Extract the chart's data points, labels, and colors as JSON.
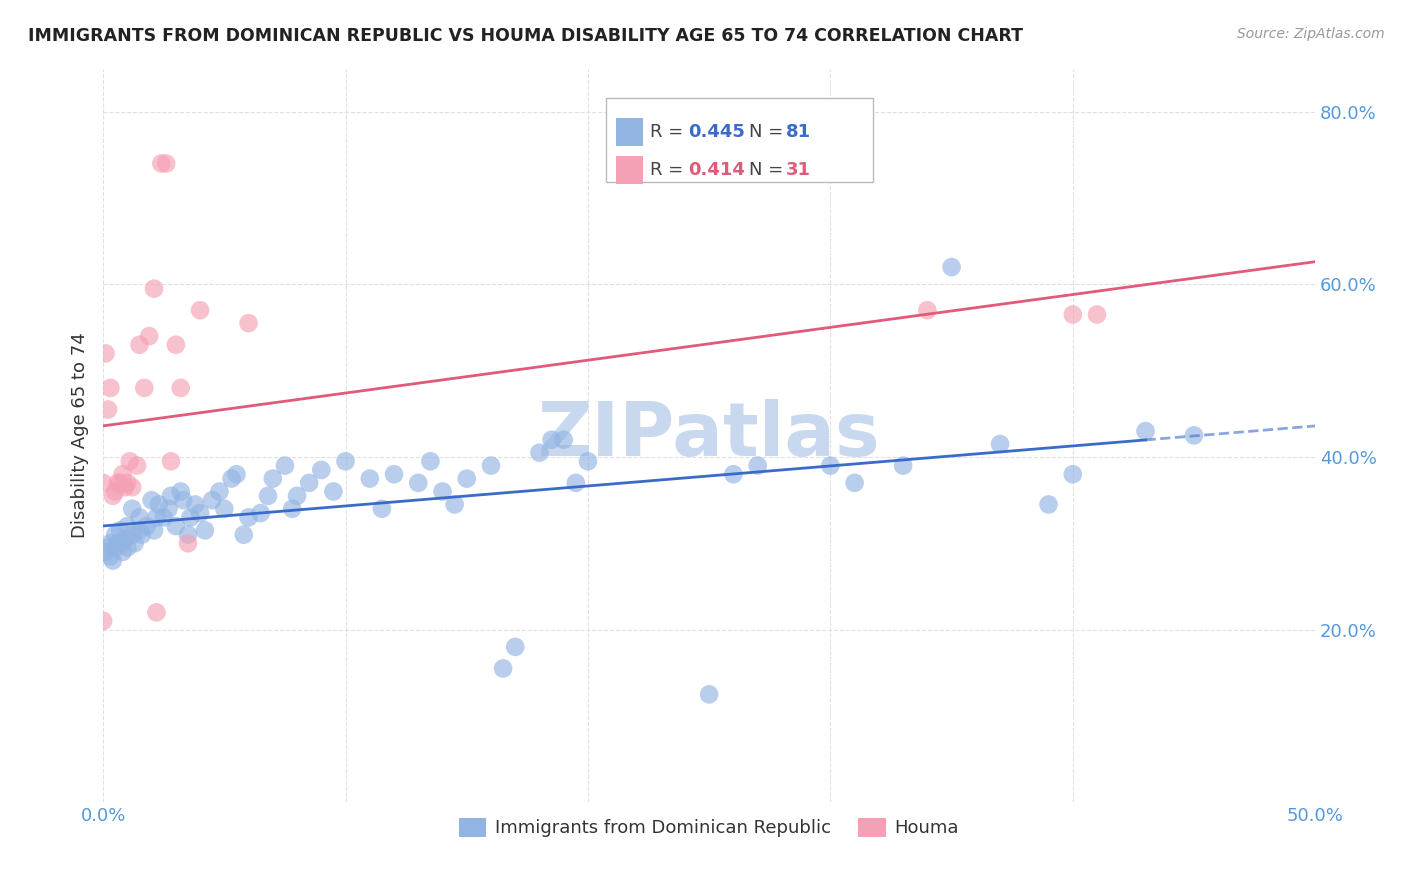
{
  "title": "IMMIGRANTS FROM DOMINICAN REPUBLIC VS HOUMA DISABILITY AGE 65 TO 74 CORRELATION CHART",
  "source": "Source: ZipAtlas.com",
  "ylabel_label": "Disability Age 65 to 74",
  "xlim": [
    0.0,
    0.5
  ],
  "ylim": [
    0.0,
    0.85
  ],
  "xtick_vals": [
    0.0,
    0.1,
    0.2,
    0.3,
    0.4,
    0.5
  ],
  "xtick_labels": [
    "0.0%",
    "",
    "",
    "",
    "",
    "50.0%"
  ],
  "ytick_vals": [
    0.0,
    0.2,
    0.4,
    0.6,
    0.8
  ],
  "ytick_labels": [
    "",
    "20.0%",
    "40.0%",
    "60.0%",
    "80.0%"
  ],
  "blue_R": "0.445",
  "blue_N": "81",
  "pink_R": "0.414",
  "pink_N": "31",
  "blue_color": "#92b4e3",
  "pink_color": "#f4a0b5",
  "blue_line_color": "#3a6bc9",
  "pink_line_color": "#e05a7a",
  "tick_color": "#5599dd",
  "blue_scatter": [
    [
      0.001,
      0.29
    ],
    [
      0.002,
      0.295
    ],
    [
      0.003,
      0.285
    ],
    [
      0.003,
      0.3
    ],
    [
      0.004,
      0.28
    ],
    [
      0.005,
      0.295
    ],
    [
      0.005,
      0.31
    ],
    [
      0.006,
      0.3
    ],
    [
      0.007,
      0.315
    ],
    [
      0.008,
      0.29
    ],
    [
      0.008,
      0.3
    ],
    [
      0.009,
      0.305
    ],
    [
      0.01,
      0.295
    ],
    [
      0.01,
      0.32
    ],
    [
      0.012,
      0.34
    ],
    [
      0.012,
      0.31
    ],
    [
      0.013,
      0.3
    ],
    [
      0.015,
      0.315
    ],
    [
      0.015,
      0.33
    ],
    [
      0.016,
      0.31
    ],
    [
      0.018,
      0.32
    ],
    [
      0.02,
      0.35
    ],
    [
      0.021,
      0.315
    ],
    [
      0.022,
      0.33
    ],
    [
      0.023,
      0.345
    ],
    [
      0.025,
      0.33
    ],
    [
      0.027,
      0.34
    ],
    [
      0.028,
      0.355
    ],
    [
      0.03,
      0.32
    ],
    [
      0.032,
      0.36
    ],
    [
      0.033,
      0.35
    ],
    [
      0.035,
      0.31
    ],
    [
      0.036,
      0.33
    ],
    [
      0.038,
      0.345
    ],
    [
      0.04,
      0.335
    ],
    [
      0.042,
      0.315
    ],
    [
      0.045,
      0.35
    ],
    [
      0.048,
      0.36
    ],
    [
      0.05,
      0.34
    ],
    [
      0.053,
      0.375
    ],
    [
      0.055,
      0.38
    ],
    [
      0.058,
      0.31
    ],
    [
      0.06,
      0.33
    ],
    [
      0.065,
      0.335
    ],
    [
      0.068,
      0.355
    ],
    [
      0.07,
      0.375
    ],
    [
      0.075,
      0.39
    ],
    [
      0.078,
      0.34
    ],
    [
      0.08,
      0.355
    ],
    [
      0.085,
      0.37
    ],
    [
      0.09,
      0.385
    ],
    [
      0.095,
      0.36
    ],
    [
      0.1,
      0.395
    ],
    [
      0.11,
      0.375
    ],
    [
      0.115,
      0.34
    ],
    [
      0.12,
      0.38
    ],
    [
      0.13,
      0.37
    ],
    [
      0.135,
      0.395
    ],
    [
      0.14,
      0.36
    ],
    [
      0.145,
      0.345
    ],
    [
      0.15,
      0.375
    ],
    [
      0.16,
      0.39
    ],
    [
      0.165,
      0.155
    ],
    [
      0.17,
      0.18
    ],
    [
      0.18,
      0.405
    ],
    [
      0.185,
      0.42
    ],
    [
      0.19,
      0.42
    ],
    [
      0.195,
      0.37
    ],
    [
      0.2,
      0.395
    ],
    [
      0.25,
      0.125
    ],
    [
      0.26,
      0.38
    ],
    [
      0.27,
      0.39
    ],
    [
      0.3,
      0.39
    ],
    [
      0.31,
      0.37
    ],
    [
      0.33,
      0.39
    ],
    [
      0.35,
      0.62
    ],
    [
      0.37,
      0.415
    ],
    [
      0.39,
      0.345
    ],
    [
      0.4,
      0.38
    ],
    [
      0.43,
      0.43
    ],
    [
      0.45,
      0.425
    ]
  ],
  "pink_scatter": [
    [
      0.0,
      0.37
    ],
    [
      0.001,
      0.52
    ],
    [
      0.002,
      0.455
    ],
    [
      0.003,
      0.48
    ],
    [
      0.004,
      0.355
    ],
    [
      0.005,
      0.36
    ],
    [
      0.006,
      0.37
    ],
    [
      0.007,
      0.37
    ],
    [
      0.008,
      0.38
    ],
    [
      0.009,
      0.365
    ],
    [
      0.01,
      0.37
    ],
    [
      0.011,
      0.395
    ],
    [
      0.012,
      0.365
    ],
    [
      0.014,
      0.39
    ],
    [
      0.015,
      0.53
    ],
    [
      0.017,
      0.48
    ],
    [
      0.019,
      0.54
    ],
    [
      0.021,
      0.595
    ],
    [
      0.024,
      0.74
    ],
    [
      0.026,
      0.74
    ],
    [
      0.028,
      0.395
    ],
    [
      0.03,
      0.53
    ],
    [
      0.032,
      0.48
    ],
    [
      0.035,
      0.3
    ],
    [
      0.04,
      0.57
    ],
    [
      0.0,
      0.21
    ],
    [
      0.022,
      0.22
    ],
    [
      0.34,
      0.57
    ],
    [
      0.4,
      0.565
    ],
    [
      0.41,
      0.565
    ],
    [
      0.06,
      0.555
    ]
  ],
  "watermark": "ZIPatlas",
  "watermark_color": "#c8d8ee",
  "background_color": "#ffffff",
  "grid_color": "#dddddd"
}
